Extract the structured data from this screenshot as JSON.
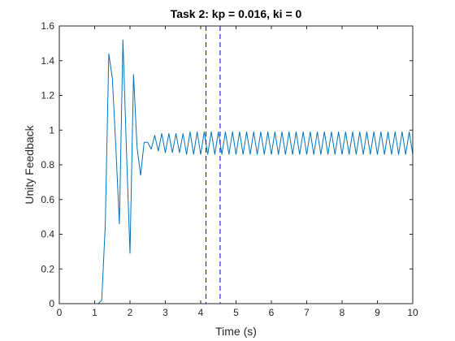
{
  "chart_data": {
    "type": "line",
    "title": "Task 2: kp = 0.016, ki = 0",
    "xlabel": "Time (s)",
    "ylabel": "Unity Feedback",
    "xlim": [
      0,
      10
    ],
    "ylim": [
      0,
      1.6
    ],
    "xticks": [
      0,
      1,
      2,
      3,
      4,
      5,
      6,
      7,
      8,
      9,
      10
    ],
    "yticks": [
      0,
      0.2,
      0.4,
      0.6,
      0.8,
      1,
      1.2,
      1.4,
      1.6
    ],
    "xtick_labels": [
      "0",
      "1",
      "2",
      "3",
      "4",
      "5",
      "6",
      "7",
      "8",
      "9",
      "10"
    ],
    "ytick_labels": [
      "0",
      "0.2",
      "0.4",
      "0.6",
      "0.8",
      "1",
      "1.2",
      "1.4",
      "1.6"
    ],
    "grid": false,
    "box": true,
    "series": [
      {
        "color": "#0072bd",
        "x": [
          0,
          1.05,
          1.1,
          1.2,
          1.3,
          1.4,
          1.5,
          1.6,
          1.7,
          1.8,
          1.9,
          2.0,
          2.1,
          2.2,
          2.3,
          2.4,
          2.5,
          2.6,
          2.7,
          2.8,
          2.9,
          3.0,
          3.1,
          3.2,
          3.3,
          3.4,
          3.5,
          3.6,
          3.7,
          3.8,
          3.9,
          4.0,
          4.1,
          4.2,
          4.3,
          4.4,
          4.5,
          4.6,
          4.7,
          4.8,
          4.9,
          5.0,
          5.1,
          5.2,
          5.3,
          5.4,
          5.5,
          5.6,
          5.7,
          5.8,
          5.9,
          6.0,
          6.1,
          6.2,
          6.3,
          6.4,
          6.5,
          6.6,
          6.7,
          6.8,
          6.9,
          7.0,
          7.1,
          7.2,
          7.3,
          7.4,
          7.5,
          7.6,
          7.7,
          7.8,
          7.9,
          8.0,
          8.1,
          8.2,
          8.3,
          8.4,
          8.5,
          8.6,
          8.7,
          8.8,
          8.9,
          9.0,
          9.1,
          9.2,
          9.3,
          9.4,
          9.5,
          9.6,
          9.7,
          9.8,
          9.9,
          10.0
        ],
        "y": [
          0,
          0,
          0,
          0.02,
          0.45,
          1.44,
          1.3,
          0.9,
          0.46,
          1.52,
          0.88,
          0.29,
          1.32,
          0.9,
          0.74,
          0.93,
          0.93,
          0.89,
          0.97,
          0.88,
          0.98,
          0.87,
          0.98,
          0.87,
          0.98,
          0.87,
          0.98,
          0.86,
          0.99,
          0.86,
          0.99,
          0.86,
          0.99,
          0.86,
          0.99,
          0.86,
          0.99,
          0.86,
          0.99,
          0.86,
          0.99,
          0.86,
          0.99,
          0.86,
          0.99,
          0.86,
          0.99,
          0.86,
          0.99,
          0.86,
          0.99,
          0.86,
          0.99,
          0.86,
          0.99,
          0.86,
          0.99,
          0.86,
          0.99,
          0.86,
          0.99,
          0.86,
          0.99,
          0.86,
          0.99,
          0.86,
          0.99,
          0.86,
          0.99,
          0.86,
          0.99,
          0.86,
          0.99,
          0.86,
          0.99,
          0.86,
          0.99,
          0.86,
          0.99,
          0.86,
          0.99,
          0.86,
          0.99,
          0.86,
          0.99,
          0.86,
          0.99,
          0.86,
          0.99,
          0.86,
          0.99,
          0.86
        ]
      }
    ],
    "vlines": [
      {
        "x": 4.15,
        "color": "#0000ff",
        "style": "dashed"
      },
      {
        "x": 4.55,
        "color": "#0000ff",
        "style": "dashed"
      }
    ]
  }
}
